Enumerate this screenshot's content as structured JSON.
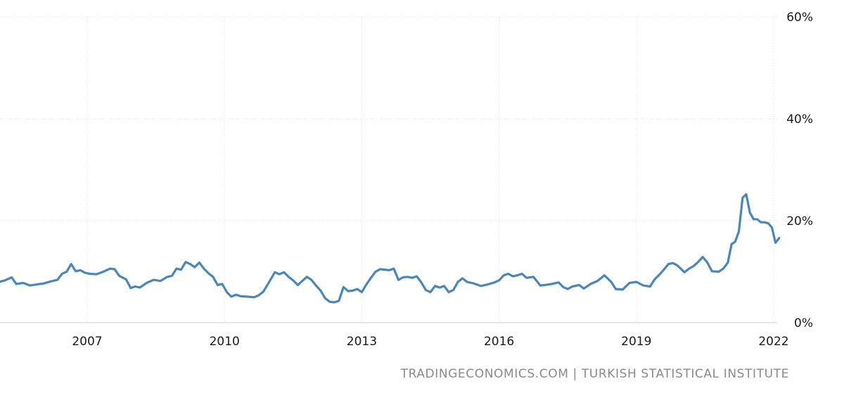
{
  "source_credit": "TRADINGECONOMICS.COM | TURKISH STATISTICAL INSTITUTE",
  "colors": {
    "line": "#4a86b8",
    "grid": "#e3e3e3",
    "axis_text": "#1a1a1a",
    "credit_text": "#8a8a8a"
  },
  "chart_data": {
    "type": "line",
    "title": "",
    "xlabel": "",
    "ylabel": "",
    "x_tick_labels": [
      "2007",
      "2010",
      "2013",
      "2016",
      "2019",
      "2022"
    ],
    "x_tick_values": [
      2007,
      2010,
      2013,
      2016,
      2019,
      2022
    ],
    "y_tick_labels": [
      "0%",
      "20%",
      "40%",
      "60%"
    ],
    "y_tick_values": [
      0,
      20,
      40,
      60
    ],
    "xlim": [
      2005.0,
      2022.1
    ],
    "ylim": [
      0,
      60
    ],
    "grid": true,
    "y_axis_side": "right",
    "legend": "none",
    "series": [
      {
        "unit": "%",
        "points": [
          [
            2005.0,
            7.8
          ],
          [
            2005.2,
            8.3
          ],
          [
            2005.35,
            8.9
          ],
          [
            2005.45,
            7.6
          ],
          [
            2005.6,
            7.8
          ],
          [
            2005.75,
            7.3
          ],
          [
            2005.9,
            7.5
          ],
          [
            2006.05,
            7.7
          ],
          [
            2006.2,
            8.1
          ],
          [
            2006.35,
            8.4
          ],
          [
            2006.45,
            9.6
          ],
          [
            2006.55,
            10.0
          ],
          [
            2006.65,
            11.5
          ],
          [
            2006.75,
            10.1
          ],
          [
            2006.85,
            10.3
          ],
          [
            2006.95,
            9.8
          ],
          [
            2007.05,
            9.6
          ],
          [
            2007.2,
            9.5
          ],
          [
            2007.35,
            10.0
          ],
          [
            2007.5,
            10.6
          ],
          [
            2007.6,
            10.5
          ],
          [
            2007.7,
            9.2
          ],
          [
            2007.85,
            8.5
          ],
          [
            2007.95,
            6.8
          ],
          [
            2008.05,
            7.1
          ],
          [
            2008.15,
            6.9
          ],
          [
            2008.3,
            7.8
          ],
          [
            2008.45,
            8.4
          ],
          [
            2008.6,
            8.2
          ],
          [
            2008.75,
            9.0
          ],
          [
            2008.85,
            9.2
          ],
          [
            2008.95,
            10.6
          ],
          [
            2009.05,
            10.4
          ],
          [
            2009.15,
            11.9
          ],
          [
            2009.25,
            11.5
          ],
          [
            2009.35,
            10.9
          ],
          [
            2009.45,
            11.8
          ],
          [
            2009.55,
            10.6
          ],
          [
            2009.65,
            9.7
          ],
          [
            2009.75,
            9.0
          ],
          [
            2009.85,
            7.4
          ],
          [
            2009.95,
            7.6
          ],
          [
            2010.05,
            6.0
          ],
          [
            2010.15,
            5.1
          ],
          [
            2010.25,
            5.5
          ],
          [
            2010.35,
            5.2
          ],
          [
            2010.5,
            5.1
          ],
          [
            2010.65,
            5.0
          ],
          [
            2010.75,
            5.4
          ],
          [
            2010.85,
            6.1
          ],
          [
            2010.95,
            7.6
          ],
          [
            2011.1,
            9.9
          ],
          [
            2011.2,
            9.5
          ],
          [
            2011.3,
            9.9
          ],
          [
            2011.4,
            9.0
          ],
          [
            2011.5,
            8.3
          ],
          [
            2011.6,
            7.4
          ],
          [
            2011.7,
            8.2
          ],
          [
            2011.8,
            9.0
          ],
          [
            2011.9,
            8.4
          ],
          [
            2012.0,
            7.3
          ],
          [
            2012.1,
            6.3
          ],
          [
            2012.2,
            4.8
          ],
          [
            2012.3,
            4.1
          ],
          [
            2012.4,
            4.0
          ],
          [
            2012.5,
            4.3
          ],
          [
            2012.6,
            7.0
          ],
          [
            2012.7,
            6.2
          ],
          [
            2012.8,
            6.3
          ],
          [
            2012.9,
            6.6
          ],
          [
            2013.0,
            6.0
          ],
          [
            2013.1,
            7.5
          ],
          [
            2013.2,
            8.8
          ],
          [
            2013.3,
            10.0
          ],
          [
            2013.4,
            10.5
          ],
          [
            2013.5,
            10.4
          ],
          [
            2013.6,
            10.3
          ],
          [
            2013.7,
            10.6
          ],
          [
            2013.8,
            8.4
          ],
          [
            2013.9,
            8.9
          ],
          [
            2014.0,
            9.0
          ],
          [
            2014.1,
            8.8
          ],
          [
            2014.2,
            9.1
          ],
          [
            2014.3,
            7.9
          ],
          [
            2014.4,
            6.4
          ],
          [
            2014.5,
            6.0
          ],
          [
            2014.6,
            7.2
          ],
          [
            2014.7,
            6.9
          ],
          [
            2014.8,
            7.2
          ],
          [
            2014.9,
            6.0
          ],
          [
            2015.0,
            6.4
          ],
          [
            2015.1,
            8.0
          ],
          [
            2015.2,
            8.7
          ],
          [
            2015.3,
            8.0
          ],
          [
            2015.45,
            7.7
          ],
          [
            2015.6,
            7.2
          ],
          [
            2015.75,
            7.5
          ],
          [
            2015.9,
            7.9
          ],
          [
            2016.0,
            8.3
          ],
          [
            2016.1,
            9.3
          ],
          [
            2016.2,
            9.6
          ],
          [
            2016.3,
            9.1
          ],
          [
            2016.4,
            9.3
          ],
          [
            2016.5,
            9.6
          ],
          [
            2016.6,
            8.8
          ],
          [
            2016.75,
            9.0
          ],
          [
            2016.9,
            7.3
          ],
          [
            2017.0,
            7.4
          ],
          [
            2017.15,
            7.6
          ],
          [
            2017.3,
            7.9
          ],
          [
            2017.4,
            7.0
          ],
          [
            2017.5,
            6.6
          ],
          [
            2017.6,
            7.1
          ],
          [
            2017.75,
            7.4
          ],
          [
            2017.85,
            6.7
          ],
          [
            2018.0,
            7.6
          ],
          [
            2018.15,
            8.2
          ],
          [
            2018.3,
            9.3
          ],
          [
            2018.45,
            8.0
          ],
          [
            2018.55,
            6.6
          ],
          [
            2018.7,
            6.5
          ],
          [
            2018.85,
            7.8
          ],
          [
            2019.0,
            8.0
          ],
          [
            2019.15,
            7.3
          ],
          [
            2019.3,
            7.1
          ],
          [
            2019.4,
            8.5
          ],
          [
            2019.5,
            9.4
          ],
          [
            2019.6,
            10.4
          ],
          [
            2019.7,
            11.5
          ],
          [
            2019.8,
            11.7
          ],
          [
            2019.9,
            11.2
          ],
          [
            2020.05,
            9.9
          ],
          [
            2020.15,
            10.6
          ],
          [
            2020.25,
            11.1
          ],
          [
            2020.35,
            11.9
          ],
          [
            2020.45,
            12.9
          ],
          [
            2020.55,
            11.8
          ],
          [
            2020.65,
            10.1
          ],
          [
            2020.8,
            10.0
          ],
          [
            2020.9,
            10.6
          ],
          [
            2021.0,
            11.8
          ],
          [
            2021.08,
            15.4
          ],
          [
            2021.16,
            15.9
          ],
          [
            2021.24,
            17.9
          ],
          [
            2021.32,
            24.5
          ],
          [
            2021.4,
            25.2
          ],
          [
            2021.48,
            21.6
          ],
          [
            2021.56,
            20.3
          ],
          [
            2021.64,
            20.3
          ],
          [
            2021.72,
            19.7
          ],
          [
            2021.8,
            19.7
          ],
          [
            2021.88,
            19.5
          ],
          [
            2021.96,
            18.7
          ],
          [
            2022.04,
            15.7
          ],
          [
            2022.12,
            16.6
          ]
        ]
      }
    ]
  }
}
